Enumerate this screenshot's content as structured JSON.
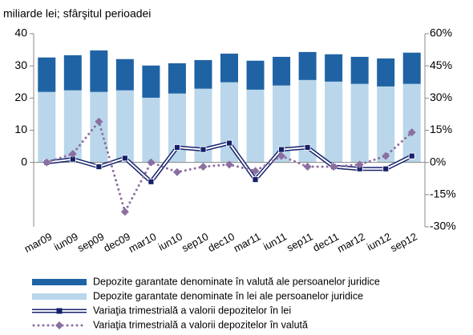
{
  "chart_data": {
    "type": "bar",
    "title": "miliarde lei; sfârşitul perioadei",
    "categories": [
      "mar09",
      "iun09",
      "sep09",
      "dec09",
      "mar10",
      "iun10",
      "sep10",
      "dec10",
      "mar11",
      "iun11",
      "sep11",
      "dec11",
      "mar12",
      "iun12",
      "sep12"
    ],
    "stacked": true,
    "ylim": [
      -20,
      40
    ],
    "yticks": [
      0,
      10,
      20,
      30,
      40
    ],
    "y2lim": [
      -30,
      60
    ],
    "y2ticks": [
      {
        "value": 60,
        "label": "60%"
      },
      {
        "value": 45,
        "label": "45%"
      },
      {
        "value": 30,
        "label": "30%"
      },
      {
        "value": 15,
        "label": "15%"
      },
      {
        "value": 0,
        "label": "0%"
      },
      {
        "value": -15,
        "label": "-15%"
      },
      {
        "value": -30,
        "label": "-30%"
      }
    ],
    "series": [
      {
        "name": "Depozite garantate denominate în lei ale persoanelor juridice",
        "type": "bar",
        "color": "#b9d6ea",
        "values": [
          21.9,
          22.4,
          21.9,
          22.4,
          20.1,
          21.4,
          22.9,
          24.9,
          22.6,
          23.9,
          25.6,
          25.1,
          24.4,
          23.6,
          24.4
        ]
      },
      {
        "name": "Depozite garantate denominate în valută ale persoanelor juridice",
        "type": "bar",
        "color": "#1f63a5",
        "values": [
          10.7,
          10.9,
          12.9,
          9.7,
          10.0,
          9.4,
          8.9,
          8.9,
          9.0,
          8.9,
          8.7,
          8.5,
          8.4,
          8.7,
          9.7
        ]
      },
      {
        "name": "Variaţia trimestrială a valorii depozitelor în lei",
        "type": "line",
        "axis": "y2",
        "color": "#16216b",
        "values": [
          0,
          1.5,
          -2,
          2,
          -9,
          7,
          6,
          9,
          -8,
          6,
          7,
          -2,
          -3,
          -3,
          3
        ]
      },
      {
        "name": "Variaţia trimestrială a valorii depozitelor în valută",
        "type": "dotted",
        "axis": "y2",
        "color": "#8b6fa0",
        "values": [
          0,
          4,
          19,
          -23,
          0,
          -4.5,
          -2,
          -1,
          -4,
          3,
          -2,
          -2,
          -1,
          3,
          14
        ]
      }
    ]
  }
}
